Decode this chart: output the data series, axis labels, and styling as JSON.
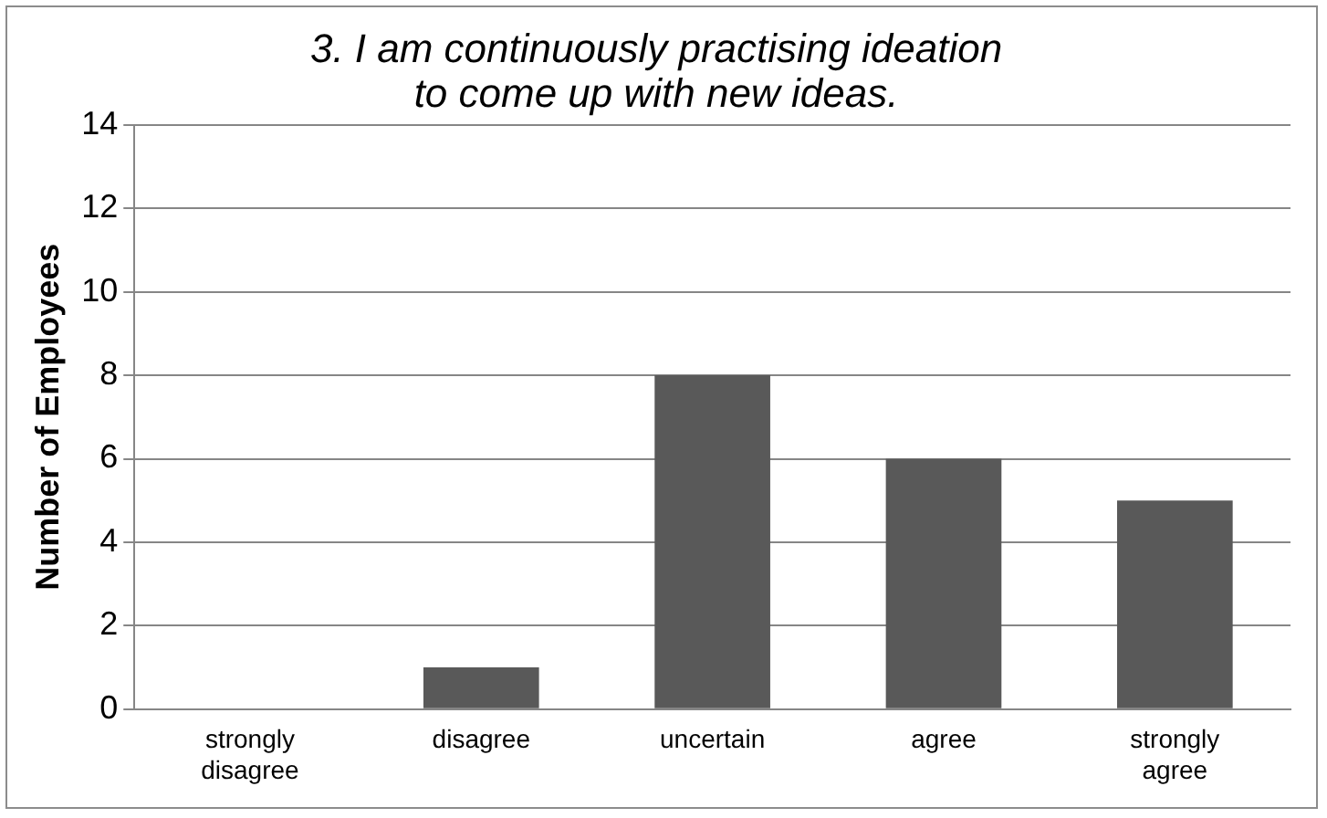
{
  "chart_data": {
    "type": "bar",
    "title": "3. I am continuously practising ideation to come up with new ideas.",
    "ylabel": "Number of Employees",
    "categories": [
      "strongly disagree",
      "disagree",
      "uncertain",
      "agree",
      "strongly agree"
    ],
    "values": [
      0,
      1,
      8,
      6,
      5
    ],
    "color": "#595959",
    "ylim": [
      0,
      14
    ],
    "yticks": [
      0,
      2,
      4,
      6,
      8,
      10,
      12,
      14
    ],
    "grid": "y",
    "legend": false
  }
}
